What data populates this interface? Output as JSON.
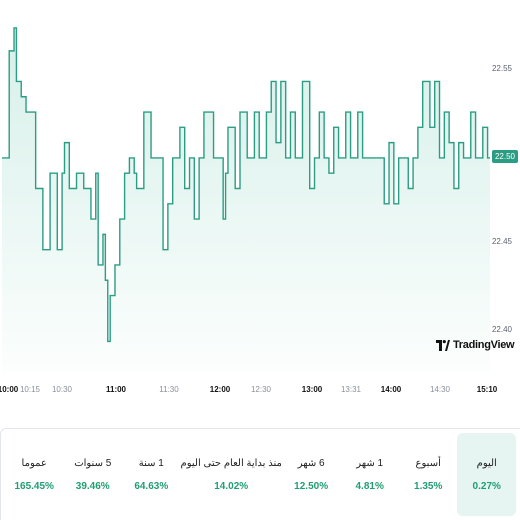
{
  "chart_data": {
    "type": "line",
    "series": [
      {
        "values": [
          22.5,
          22.5,
          22.5,
          22.57,
          22.57,
          22.585,
          22.55,
          22.55,
          22.54,
          22.54,
          22.53,
          22.53,
          22.53,
          22.53,
          22.48,
          22.48,
          22.48,
          22.44,
          22.44,
          22.44,
          22.49,
          22.49,
          22.49,
          22.44,
          22.44,
          22.49,
          22.51,
          22.51,
          22.48,
          22.48,
          22.48,
          22.49,
          22.49,
          22.49,
          22.48,
          22.48,
          22.48,
          22.46,
          22.46,
          22.49,
          22.43,
          22.43,
          22.45,
          22.42,
          22.38,
          22.41,
          22.41,
          22.43,
          22.43,
          22.46,
          22.46,
          22.49,
          22.49,
          22.5,
          22.5,
          22.49,
          22.48,
          22.48,
          22.48,
          22.53,
          22.53,
          22.53,
          22.5,
          22.5,
          22.5,
          22.5,
          22.5,
          22.44,
          22.44,
          22.47,
          22.47,
          22.5,
          22.5,
          22.5,
          22.52,
          22.52,
          22.48,
          22.48,
          22.5,
          22.5,
          22.46,
          22.46,
          22.5,
          22.5,
          22.53,
          22.53,
          22.53,
          22.53,
          22.5,
          22.5,
          22.5,
          22.5,
          22.46,
          22.49,
          22.52,
          22.52,
          22.52,
          22.48,
          22.48,
          22.53,
          22.53,
          22.53,
          22.5,
          22.5,
          22.5,
          22.53,
          22.53,
          22.5,
          22.5,
          22.5,
          22.53,
          22.53,
          22.55,
          22.55,
          22.51,
          22.51,
          22.55,
          22.55,
          22.5,
          22.5,
          22.53,
          22.53,
          22.5,
          22.5,
          22.5,
          22.55,
          22.55,
          22.55,
          22.48,
          22.48,
          22.5,
          22.5,
          22.53,
          22.53,
          22.5,
          22.5,
          22.49,
          22.49,
          22.52,
          22.52,
          22.5,
          22.5,
          22.5,
          22.53,
          22.53,
          22.5,
          22.5,
          22.5,
          22.53,
          22.53,
          22.5,
          22.5,
          22.5,
          22.5,
          22.5,
          22.5,
          22.5,
          22.5,
          22.5,
          22.47,
          22.47,
          22.51,
          22.51,
          22.47,
          22.47,
          22.5,
          22.5,
          22.5,
          22.5,
          22.48,
          22.48,
          22.5,
          22.5,
          22.52,
          22.52,
          22.55,
          22.55,
          22.55,
          22.52,
          22.52,
          22.55,
          22.55,
          22.5,
          22.5,
          22.53,
          22.53,
          22.51,
          22.51,
          22.48,
          22.48,
          22.51,
          22.51,
          22.5,
          22.5,
          22.5,
          22.53,
          22.53,
          22.5,
          22.5,
          22.5,
          22.52,
          22.52,
          22.5,
          22.5
        ]
      }
    ],
    "x_ticks": [
      {
        "label": "10:00",
        "major": true
      },
      {
        "label": "10:15",
        "major": false
      },
      {
        "label": "10:30",
        "major": false
      },
      {
        "label": "11:00",
        "major": true
      },
      {
        "label": "11:30",
        "major": false
      },
      {
        "label": "12:00",
        "major": true
      },
      {
        "label": "12:30",
        "major": false
      },
      {
        "label": "13:00",
        "major": true
      },
      {
        "label": "13:31",
        "major": false
      },
      {
        "label": "14:00",
        "major": true
      },
      {
        "label": "14:30",
        "major": false
      },
      {
        "label": "15:10",
        "major": true
      }
    ],
    "y_ticks": [
      "22.55",
      "22.45",
      "22.40"
    ],
    "current_value": "22.50",
    "ylim": [
      22.36,
      22.6
    ],
    "line_color": "#2a9d84",
    "fill_color": "#d4efe8",
    "grid": false
  },
  "brand": "TradingView",
  "periods": [
    {
      "label": "اليوم",
      "value": "0.27%",
      "active": true
    },
    {
      "label": "أسبوع",
      "value": "1.35%",
      "active": false
    },
    {
      "label": "1 شهر",
      "value": "4.81%",
      "active": false
    },
    {
      "label": "6 شهر",
      "value": "12.50%",
      "active": false
    },
    {
      "label": "منذ بداية العام حتى اليوم",
      "value": "14.02%",
      "active": false
    },
    {
      "label": "1 سنة",
      "value": "64.63%",
      "active": false
    },
    {
      "label": "5 سنوات",
      "value": "39.46%",
      "active": false
    },
    {
      "label": "عموما",
      "value": "165.45%",
      "active": false
    }
  ],
  "colors": {
    "positive": "#1f9e71",
    "active_bg": "#e6f5f1"
  }
}
